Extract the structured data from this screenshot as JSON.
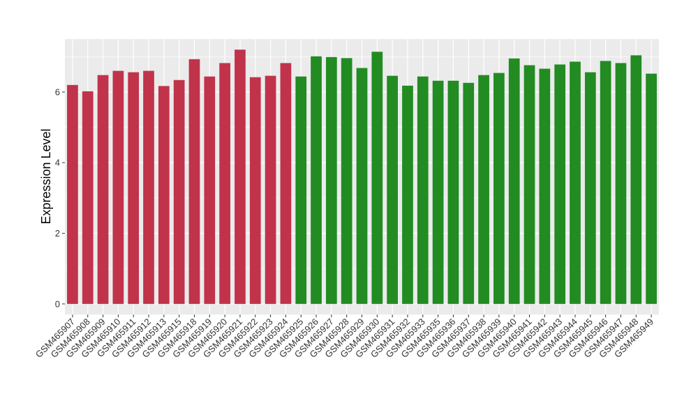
{
  "chart_data": {
    "type": "bar",
    "title": "",
    "xlabel": "",
    "ylabel": "Expression Level",
    "ylim": [
      -0.3,
      7.5
    ],
    "yticks": [
      0,
      2,
      4,
      6
    ],
    "grid": true,
    "legend": "none",
    "background_color": "#ebebeb",
    "gridline_color": "#ffffff",
    "categories": [
      "GSM465907",
      "GSM465908",
      "GSM465909",
      "GSM465910",
      "GSM465911",
      "GSM465912",
      "GSM465913",
      "GSM465915",
      "GSM465918",
      "GSM465919",
      "GSM465920",
      "GSM465921",
      "GSM465922",
      "GSM465923",
      "GSM465924",
      "GSM465925",
      "GSM465926",
      "GSM465927",
      "GSM465928",
      "GSM465929",
      "GSM465930",
      "GSM465931",
      "GSM465932",
      "GSM465933",
      "GSM465935",
      "GSM465936",
      "GSM465937",
      "GSM465938",
      "GSM465939",
      "GSM465940",
      "GSM465941",
      "GSM465942",
      "GSM465943",
      "GSM465944",
      "GSM465945",
      "GSM465946",
      "GSM465947",
      "GSM465948",
      "GSM465949"
    ],
    "values": [
      6.2,
      6.02,
      6.48,
      6.6,
      6.56,
      6.6,
      6.17,
      6.34,
      6.93,
      6.44,
      6.82,
      7.2,
      6.42,
      6.46,
      6.82,
      6.44,
      7.01,
      6.99,
      6.96,
      6.68,
      7.14,
      6.46,
      6.18,
      6.44,
      6.32,
      6.32,
      6.26,
      6.48,
      6.54,
      6.95,
      6.76,
      6.66,
      6.78,
      6.86,
      6.56,
      6.88,
      6.82,
      7.04,
      6.52
    ],
    "colors": [
      "#c0334b",
      "#c0334b",
      "#c0334b",
      "#c0334b",
      "#c0334b",
      "#c0334b",
      "#c0334b",
      "#c0334b",
      "#c0334b",
      "#c0334b",
      "#c0334b",
      "#c0334b",
      "#c0334b",
      "#c0334b",
      "#c0334b",
      "#228b22",
      "#228b22",
      "#228b22",
      "#228b22",
      "#228b22",
      "#228b22",
      "#228b22",
      "#228b22",
      "#228b22",
      "#228b22",
      "#228b22",
      "#228b22",
      "#228b22",
      "#228b22",
      "#228b22",
      "#228b22",
      "#228b22",
      "#228b22",
      "#228b22",
      "#228b22",
      "#228b22",
      "#228b22",
      "#228b22",
      "#228b22"
    ]
  }
}
